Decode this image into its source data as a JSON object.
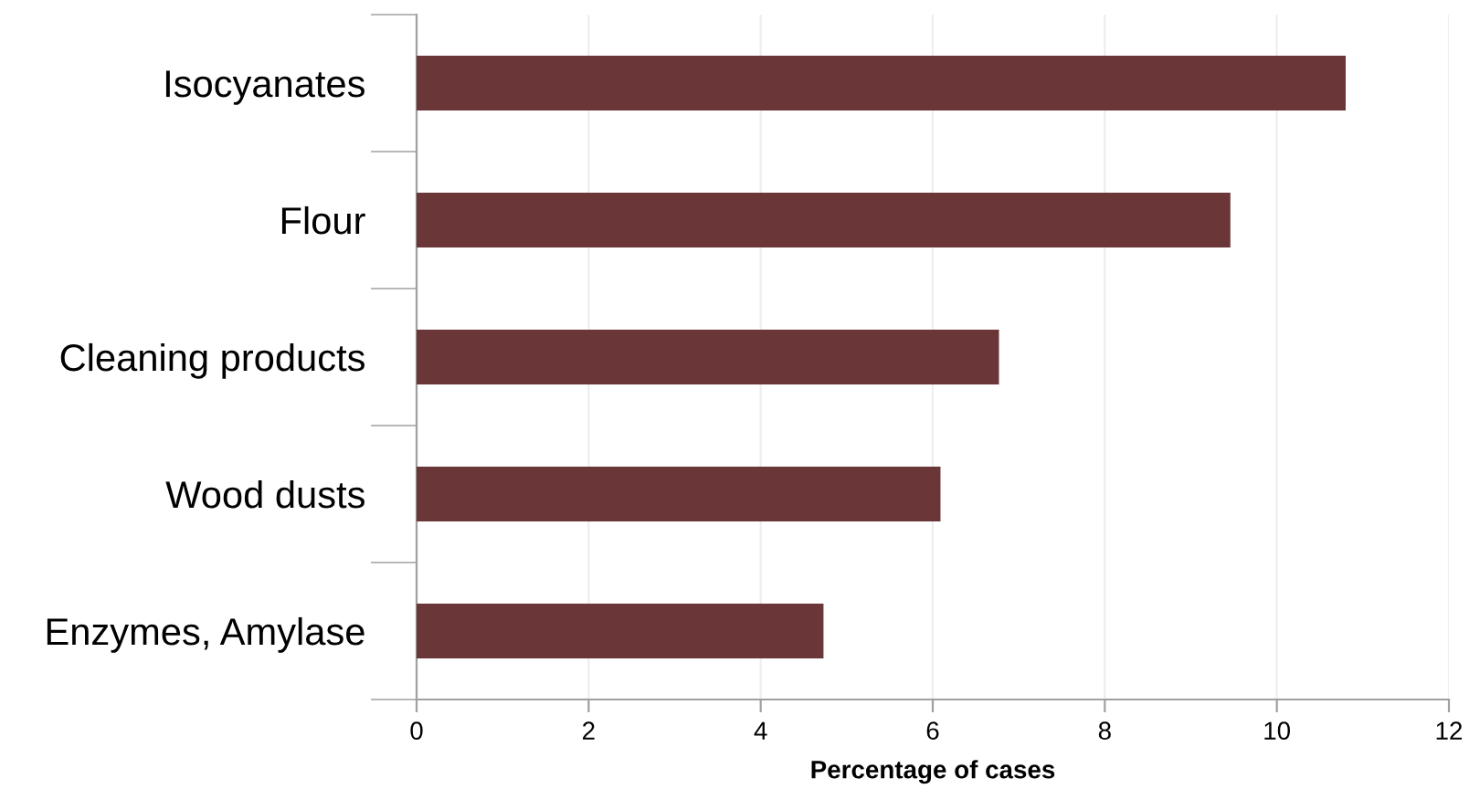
{
  "chart_data": {
    "type": "bar",
    "orientation": "horizontal",
    "xlabel": "Percentage of cases",
    "categories": [
      "Isocyanates",
      "Flour",
      "Cleaning products",
      "Wood dusts",
      "Enzymes, Amylase"
    ],
    "values": [
      10.8,
      9.46,
      6.77,
      6.09,
      4.73
    ],
    "color": "#6b3637",
    "xlim": [
      0,
      12
    ],
    "xticks": [
      0,
      2,
      4,
      6,
      8,
      10,
      12
    ],
    "grid": "x"
  }
}
